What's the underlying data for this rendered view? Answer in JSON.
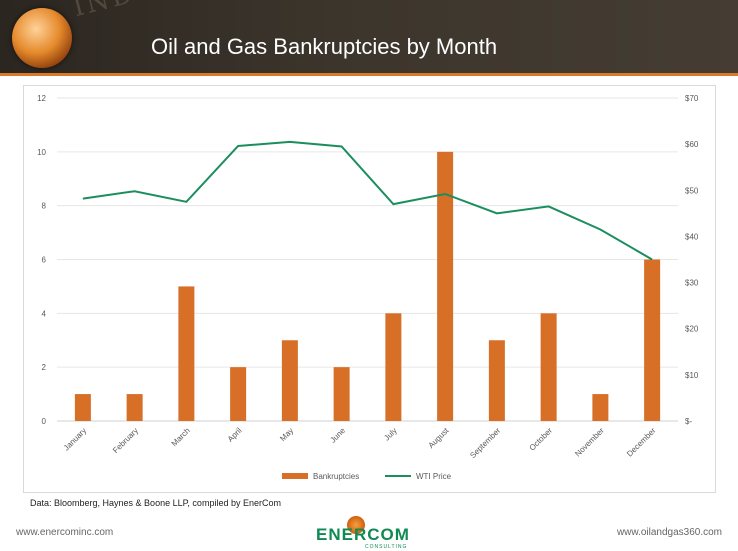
{
  "header": {
    "title": "Oil and Gas Bankruptcies by Month",
    "background_text": "INDUSTI"
  },
  "source": "Data: Bloomberg, Haynes & Boone LLP, compiled by EnerCom",
  "footer": {
    "left_url": "www.enercominc.com",
    "right_url": "www.oilandgas360.com",
    "logo_text": "ENERCOM",
    "logo_sub": "CONSULTING"
  },
  "colors": {
    "bar": "#d86f27",
    "line": "#1b8e5e",
    "stripe": "#d97a2a",
    "grid": "#e6e6e6"
  },
  "chart_data": {
    "type": "bar",
    "categories": [
      "January",
      "February",
      "March",
      "April",
      "May",
      "June",
      "July",
      "August",
      "September",
      "October",
      "November",
      "December"
    ],
    "series": [
      {
        "name": "Bankruptcies",
        "type": "bar",
        "axis": "left",
        "values": [
          1,
          1,
          5,
          2,
          3,
          2,
          4,
          10,
          3,
          4,
          1,
          6
        ]
      },
      {
        "name": "WTI Price",
        "type": "line",
        "axis": "right",
        "values": [
          48.2,
          49.8,
          47.5,
          59.6,
          60.5,
          59.5,
          47.0,
          49.2,
          45.0,
          46.5,
          41.5,
          35.0
        ]
      }
    ],
    "y_left": {
      "min": 0,
      "max": 12,
      "ticks": [
        "0",
        "2",
        "4",
        "6",
        "8",
        "10",
        "12"
      ]
    },
    "y_right": {
      "min": 0,
      "max": 70,
      "ticks": [
        "$-",
        "$10",
        "$20",
        "$30",
        "$40",
        "$50",
        "$60",
        "$70"
      ]
    },
    "grid": true,
    "legend_position": "bottom"
  }
}
